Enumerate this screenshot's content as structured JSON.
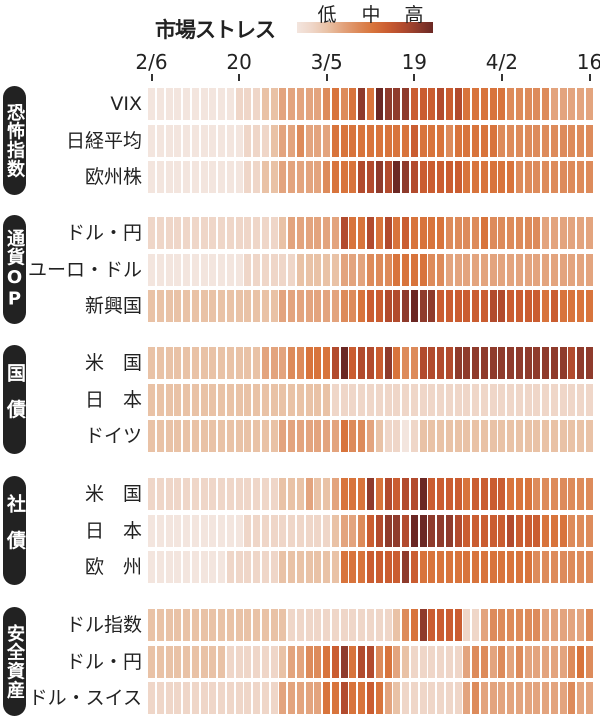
{
  "chart_data": {
    "type": "heatmap",
    "title": "市場ストレス",
    "legend": {
      "labels": [
        "低",
        "中",
        "高"
      ],
      "placement": "top",
      "scale_min": 0,
      "scale_max": 9
    },
    "colors": [
      "#f3e5de",
      "#efd6c8",
      "#e9c2a6",
      "#e3a47e",
      "#dd8b5b",
      "#d8743c",
      "#ca5d31",
      "#b24b2e",
      "#8f3b2c",
      "#6b2824"
    ],
    "x_tick_labels": [
      {
        "col": 0,
        "label": "2/6"
      },
      {
        "col": 10,
        "label": "20"
      },
      {
        "col": 20,
        "label": "3/5"
      },
      {
        "col": 30,
        "label": "19"
      },
      {
        "col": 40,
        "label": "4/2"
      },
      {
        "col": 50,
        "label": "16"
      }
    ],
    "n_columns": 51,
    "groups": [
      {
        "label": "恐怖指数",
        "rows": [
          {
            "label": "VIX",
            "values": [
              0,
              0,
              0,
              0,
              0,
              0,
              0,
              0,
              0,
              0,
              1,
              1,
              1,
              2,
              2,
              3,
              3,
              3,
              3,
              3,
              4,
              5,
              4,
              5,
              8,
              5,
              9,
              8,
              8,
              8,
              6,
              6,
              6,
              7,
              6,
              7,
              5,
              5,
              5,
              5,
              5,
              4,
              4,
              4,
              4,
              4,
              3,
              3,
              3,
              3,
              3
            ]
          },
          {
            "label": "日経平均",
            "values": [
              0,
              0,
              0,
              0,
              0,
              0,
              0,
              0,
              0,
              0,
              0,
              1,
              1,
              1,
              2,
              3,
              3,
              4,
              3,
              3,
              3,
              5,
              5,
              5,
              5,
              5,
              5,
              5,
              5,
              5,
              6,
              5,
              5,
              5,
              4,
              5,
              5,
              5,
              5,
              5,
              4,
              4,
              4,
              4,
              4,
              4,
              4,
              4,
              4,
              4,
              4
            ]
          },
          {
            "label": "欧州株",
            "values": [
              0,
              0,
              0,
              0,
              0,
              0,
              0,
              0,
              0,
              0,
              0,
              1,
              1,
              2,
              2,
              3,
              3,
              3,
              3,
              3,
              4,
              5,
              5,
              5,
              7,
              7,
              8,
              7,
              9,
              8,
              7,
              6,
              6,
              6,
              6,
              6,
              5,
              5,
              5,
              5,
              5,
              5,
              4,
              4,
              4,
              4,
              4,
              4,
              4,
              4,
              4
            ]
          }
        ]
      },
      {
        "label": "通貨OP",
        "rows": [
          {
            "label": "ドル・円",
            "values": [
              1,
              1,
              1,
              1,
              1,
              1,
              1,
              1,
              1,
              1,
              1,
              1,
              1,
              1,
              1,
              2,
              3,
              3,
              3,
              3,
              3,
              3,
              7,
              5,
              5,
              7,
              5,
              7,
              5,
              6,
              5,
              5,
              5,
              5,
              4,
              4,
              4,
              4,
              5,
              4,
              4,
              4,
              4,
              4,
              4,
              3,
              3,
              3,
              3,
              3,
              3
            ]
          },
          {
            "label": "ユーロ・ドル",
            "values": [
              0,
              0,
              0,
              0,
              0,
              0,
              0,
              0,
              0,
              0,
              0,
              1,
              1,
              1,
              1,
              1,
              1,
              2,
              2,
              2,
              2,
              2,
              3,
              3,
              3,
              4,
              4,
              4,
              5,
              5,
              5,
              5,
              4,
              4,
              3,
              3,
              3,
              3,
              3,
              3,
              3,
              3,
              3,
              3,
              3,
              3,
              3,
              3,
              3,
              3,
              3
            ]
          },
          {
            "label": "新興国",
            "values": [
              2,
              2,
              2,
              2,
              2,
              2,
              2,
              2,
              2,
              2,
              2,
              2,
              2,
              2,
              2,
              3,
              3,
              3,
              3,
              3,
              3,
              3,
              4,
              4,
              5,
              6,
              6,
              7,
              7,
              8,
              9,
              8,
              8,
              6,
              6,
              6,
              6,
              6,
              6,
              7,
              7,
              6,
              6,
              6,
              6,
              5,
              6,
              5,
              5,
              5,
              5
            ]
          }
        ]
      },
      {
        "label": "国債",
        "rows": [
          {
            "label": "米　国",
            "values": [
              2,
              2,
              2,
              2,
              2,
              2,
              2,
              2,
              2,
              2,
              2,
              2,
              2,
              3,
              3,
              3,
              4,
              4,
              5,
              5,
              5,
              7,
              9,
              6,
              7,
              7,
              6,
              8,
              5,
              4,
              4,
              7,
              7,
              7,
              7,
              8,
              8,
              8,
              8,
              8,
              8,
              8,
              8,
              8,
              8,
              8,
              8,
              8,
              7,
              8,
              8
            ]
          },
          {
            "label": "日　本",
            "values": [
              2,
              2,
              2,
              2,
              2,
              2,
              2,
              2,
              2,
              2,
              2,
              2,
              2,
              2,
              2,
              2,
              2,
              2,
              2,
              2,
              2,
              1,
              1,
              1,
              1,
              1,
              1,
              1,
              1,
              1,
              1,
              1,
              1,
              1,
              1,
              1,
              1,
              1,
              1,
              1,
              1,
              1,
              1,
              1,
              1,
              1,
              1,
              1,
              1,
              1,
              1
            ]
          },
          {
            "label": "ドイツ",
            "values": [
              2,
              2,
              2,
              2,
              2,
              2,
              2,
              2,
              2,
              2,
              2,
              2,
              2,
              2,
              2,
              3,
              3,
              3,
              3,
              3,
              3,
              3,
              5,
              4,
              4,
              3,
              2,
              1,
              1,
              0,
              1,
              2,
              2,
              2,
              2,
              2,
              2,
              2,
              2,
              2,
              2,
              2,
              2,
              2,
              2,
              2,
              2,
              2,
              2,
              2,
              2
            ]
          }
        ]
      },
      {
        "label": "社債",
        "rows": [
          {
            "label": "米　国",
            "values": [
              1,
              1,
              1,
              1,
              1,
              1,
              1,
              1,
              1,
              1,
              1,
              1,
              1,
              1,
              1,
              2,
              2,
              2,
              3,
              2,
              2,
              3,
              5,
              5,
              5,
              8,
              5,
              7,
              6,
              7,
              7,
              9,
              6,
              6,
              6,
              6,
              5,
              6,
              6,
              6,
              6,
              5,
              5,
              5,
              4,
              4,
              4,
              4,
              4,
              4,
              4
            ]
          },
          {
            "label": "日　本",
            "values": [
              0,
              0,
              0,
              0,
              0,
              0,
              0,
              0,
              0,
              0,
              0,
              1,
              1,
              1,
              1,
              1,
              1,
              1,
              1,
              1,
              1,
              2,
              3,
              3,
              4,
              6,
              7,
              8,
              8,
              7,
              9,
              9,
              8,
              8,
              8,
              7,
              6,
              6,
              6,
              6,
              6,
              7,
              6,
              6,
              6,
              5,
              5,
              5,
              4,
              4,
              4
            ]
          },
          {
            "label": "欧　州",
            "values": [
              0,
              0,
              0,
              0,
              0,
              0,
              0,
              0,
              0,
              1,
              1,
              1,
              1,
              1,
              1,
              2,
              2,
              2,
              2,
              2,
              2,
              2,
              5,
              5,
              5,
              6,
              6,
              6,
              6,
              8,
              6,
              5,
              5,
              5,
              5,
              5,
              5,
              5,
              5,
              5,
              5,
              5,
              5,
              5,
              4,
              4,
              4,
              4,
              4,
              4,
              4
            ]
          }
        ]
      },
      {
        "label": "安全資産",
        "rows": [
          {
            "label": "ドル指数",
            "values": [
              2,
              2,
              2,
              2,
              2,
              2,
              2,
              2,
              2,
              2,
              2,
              2,
              2,
              2,
              2,
              2,
              1,
              1,
              1,
              1,
              1,
              1,
              1,
              1,
              1,
              1,
              1,
              1,
              2,
              4,
              5,
              8,
              6,
              6,
              6,
              6,
              1,
              1,
              3,
              4,
              4,
              4,
              4,
              4,
              4,
              3,
              3,
              3,
              3,
              3,
              4
            ]
          },
          {
            "label": "ドル・円",
            "values": [
              2,
              2,
              2,
              2,
              2,
              2,
              2,
              2,
              2,
              1,
              1,
              1,
              1,
              1,
              1,
              2,
              3,
              3,
              4,
              4,
              5,
              6,
              8,
              5,
              7,
              7,
              4,
              5,
              3,
              2,
              1,
              1,
              1,
              1,
              1,
              1,
              3,
              4,
              4,
              3,
              4,
              3,
              4,
              3,
              3,
              3,
              3,
              3,
              4,
              5,
              4
            ]
          },
          {
            "label": "ドル・スイス",
            "values": [
              1,
              1,
              1,
              1,
              1,
              1,
              1,
              1,
              1,
              1,
              1,
              1,
              1,
              1,
              1,
              3,
              3,
              3,
              3,
              3,
              5,
              5,
              7,
              5,
              5,
              6,
              5,
              3,
              2,
              1,
              1,
              1,
              1,
              1,
              1,
              1,
              3,
              4,
              3,
              3,
              3,
              3,
              3,
              3,
              3,
              3,
              3,
              3,
              4,
              3,
              3
            ]
          }
        ]
      }
    ]
  }
}
